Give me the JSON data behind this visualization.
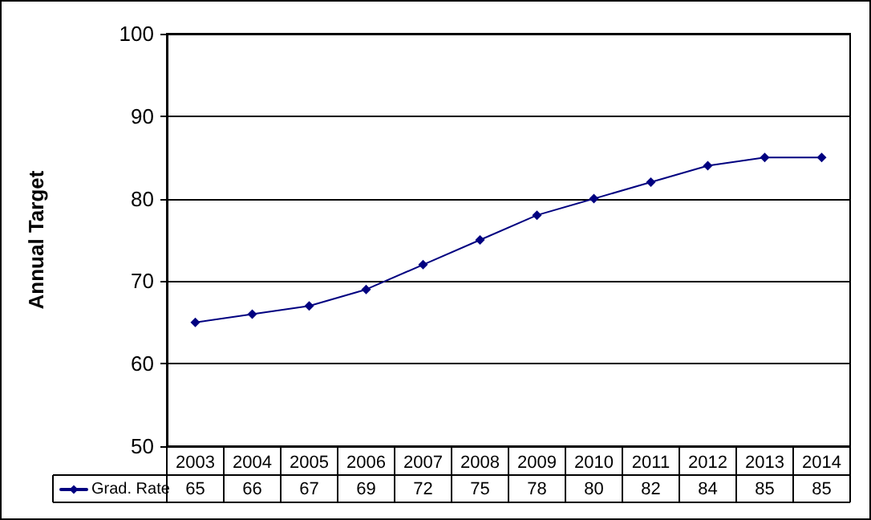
{
  "chart_data": {
    "type": "line",
    "ylabel": "Annual Target",
    "categories": [
      "2003",
      "2004",
      "2005",
      "2006",
      "2007",
      "2008",
      "2009",
      "2010",
      "2011",
      "2012",
      "2013",
      "2014"
    ],
    "series": [
      {
        "name": "Grad. Rate",
        "color": "#000080",
        "values": [
          65,
          66,
          67,
          69,
          72,
          75,
          78,
          80,
          82,
          84,
          85,
          85
        ]
      }
    ],
    "ylim": [
      50,
      100
    ],
    "yticks": [
      50,
      60,
      70,
      80,
      90,
      100
    ],
    "grid": "y",
    "legend": "bottom left",
    "marker": "diamond",
    "line_style": "solid",
    "data_labels": true
  }
}
